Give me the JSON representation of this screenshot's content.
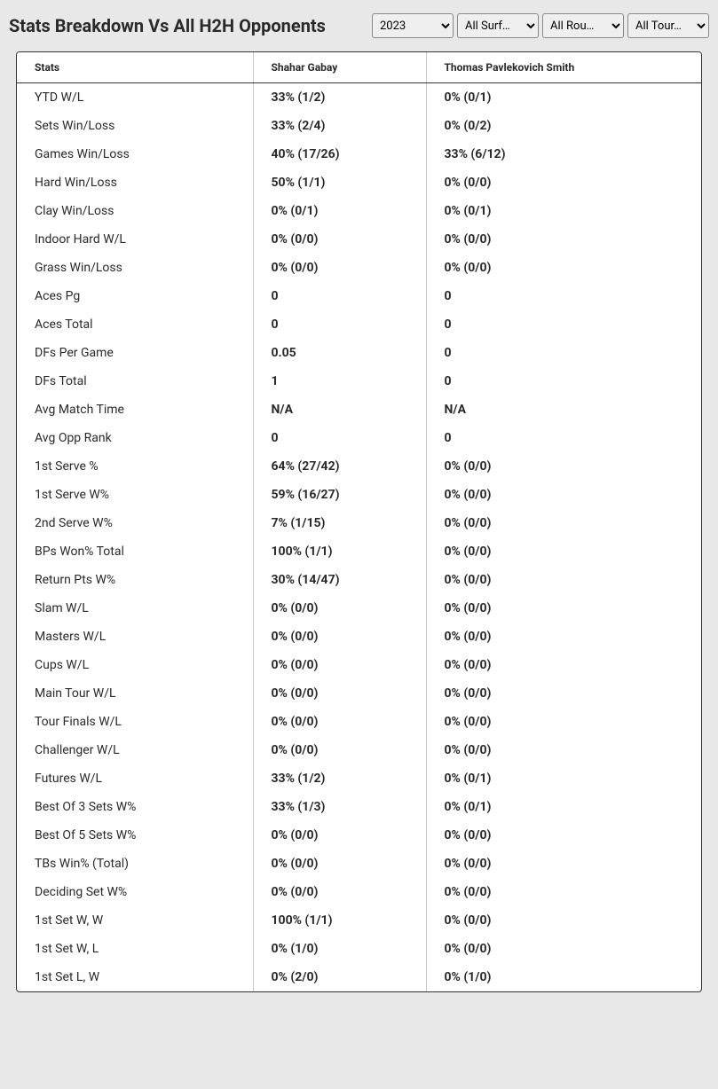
{
  "title": "Stats Breakdown Vs All H2H Opponents",
  "filters": {
    "year": "2023",
    "surface": "All Surf…",
    "round": "All Rou…",
    "tournament": "All Tour…"
  },
  "columns": {
    "stats": "Stats",
    "player1": "Shahar Gabay",
    "player2": "Thomas Pavlekovich Smith"
  },
  "rows": [
    {
      "stat": "YTD W/L",
      "p1": "33% (1/2)",
      "p2": "0% (0/1)"
    },
    {
      "stat": "Sets Win/Loss",
      "p1": "33% (2/4)",
      "p2": "0% (0/2)"
    },
    {
      "stat": "Games Win/Loss",
      "p1": "40% (17/26)",
      "p2": "33% (6/12)"
    },
    {
      "stat": "Hard Win/Loss",
      "p1": "50% (1/1)",
      "p2": "0% (0/0)"
    },
    {
      "stat": "Clay Win/Loss",
      "p1": "0% (0/1)",
      "p2": "0% (0/1)"
    },
    {
      "stat": "Indoor Hard W/L",
      "p1": "0% (0/0)",
      "p2": "0% (0/0)"
    },
    {
      "stat": "Grass Win/Loss",
      "p1": "0% (0/0)",
      "p2": "0% (0/0)"
    },
    {
      "stat": "Aces Pg",
      "p1": "0",
      "p2": "0"
    },
    {
      "stat": "Aces Total",
      "p1": "0",
      "p2": "0"
    },
    {
      "stat": "DFs Per Game",
      "p1": "0.05",
      "p2": "0"
    },
    {
      "stat": "DFs Total",
      "p1": "1",
      "p2": "0"
    },
    {
      "stat": "Avg Match Time",
      "p1": "N/A",
      "p2": "N/A"
    },
    {
      "stat": "Avg Opp Rank",
      "p1": "0",
      "p2": "0"
    },
    {
      "stat": "1st Serve %",
      "p1": "64% (27/42)",
      "p2": "0% (0/0)"
    },
    {
      "stat": "1st Serve W%",
      "p1": "59% (16/27)",
      "p2": "0% (0/0)"
    },
    {
      "stat": "2nd Serve W%",
      "p1": "7% (1/15)",
      "p2": "0% (0/0)"
    },
    {
      "stat": "BPs Won% Total",
      "p1": "100% (1/1)",
      "p2": "0% (0/0)"
    },
    {
      "stat": "Return Pts W%",
      "p1": "30% (14/47)",
      "p2": "0% (0/0)"
    },
    {
      "stat": "Slam W/L",
      "p1": "0% (0/0)",
      "p2": "0% (0/0)"
    },
    {
      "stat": "Masters W/L",
      "p1": "0% (0/0)",
      "p2": "0% (0/0)"
    },
    {
      "stat": "Cups W/L",
      "p1": "0% (0/0)",
      "p2": "0% (0/0)"
    },
    {
      "stat": "Main Tour W/L",
      "p1": "0% (0/0)",
      "p2": "0% (0/0)"
    },
    {
      "stat": "Tour Finals W/L",
      "p1": "0% (0/0)",
      "p2": "0% (0/0)"
    },
    {
      "stat": "Challenger W/L",
      "p1": "0% (0/0)",
      "p2": "0% (0/0)"
    },
    {
      "stat": "Futures W/L",
      "p1": "33% (1/2)",
      "p2": "0% (0/1)"
    },
    {
      "stat": "Best Of 3 Sets W%",
      "p1": "33% (1/3)",
      "p2": "0% (0/1)"
    },
    {
      "stat": "Best Of 5 Sets W%",
      "p1": "0% (0/0)",
      "p2": "0% (0/0)"
    },
    {
      "stat": "TBs Win% (Total)",
      "p1": "0% (0/0)",
      "p2": "0% (0/0)"
    },
    {
      "stat": "Deciding Set W%",
      "p1": "0% (0/0)",
      "p2": "0% (0/0)"
    },
    {
      "stat": "1st Set W, W",
      "p1": "100% (1/1)",
      "p2": "0% (0/0)"
    },
    {
      "stat": "1st Set W, L",
      "p1": "0% (1/0)",
      "p2": "0% (0/0)"
    },
    {
      "stat": "1st Set L, W",
      "p1": "0% (2/0)",
      "p2": "0% (1/0)"
    }
  ],
  "styling": {
    "background_color": "#e8e8e8",
    "table_bg": "#ffffff",
    "border_color": "#333333",
    "cell_divider": "#c8c8c8",
    "text_color": "#2a2a2a",
    "title_fontsize": 20,
    "header_fontsize": 12,
    "cell_fontsize": 14
  }
}
